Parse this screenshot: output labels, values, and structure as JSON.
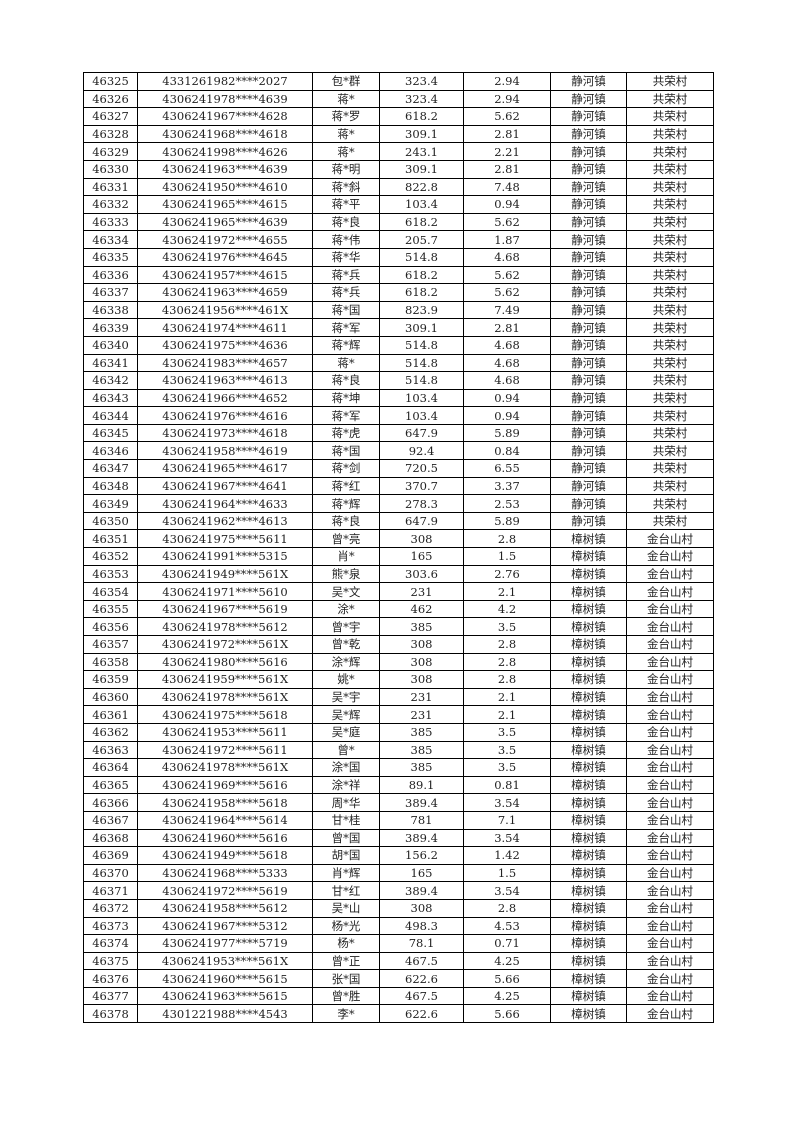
{
  "rows": [
    [
      "46325",
      "4331261982****2027",
      "包*群",
      "323.4",
      "2.94",
      "静河镇",
      "共荣村"
    ],
    [
      "46326",
      "4306241978****4639",
      "蒋*",
      "323.4",
      "2.94",
      "静河镇",
      "共荣村"
    ],
    [
      "46327",
      "4306241967****4628",
      "蒋*罗",
      "618.2",
      "5.62",
      "静河镇",
      "共荣村"
    ],
    [
      "46328",
      "4306241968****4618",
      "蒋*",
      "309.1",
      "2.81",
      "静河镇",
      "共荣村"
    ],
    [
      "46329",
      "4306241998****4626",
      "蒋*",
      "243.1",
      "2.21",
      "静河镇",
      "共荣村"
    ],
    [
      "46330",
      "4306241963****4639",
      "蒋*明",
      "309.1",
      "2.81",
      "静河镇",
      "共荣村"
    ],
    [
      "46331",
      "4306241950****4610",
      "蒋*斜",
      "822.8",
      "7.48",
      "静河镇",
      "共荣村"
    ],
    [
      "46332",
      "4306241965****4615",
      "蒋*平",
      "103.4",
      "0.94",
      "静河镇",
      "共荣村"
    ],
    [
      "46333",
      "4306241965****4639",
      "蒋*良",
      "618.2",
      "5.62",
      "静河镇",
      "共荣村"
    ],
    [
      "46334",
      "4306241972****4655",
      "蒋*伟",
      "205.7",
      "1.87",
      "静河镇",
      "共荣村"
    ],
    [
      "46335",
      "4306241976****4645",
      "蒋*华",
      "514.8",
      "4.68",
      "静河镇",
      "共荣村"
    ],
    [
      "46336",
      "4306241957****4615",
      "蒋*兵",
      "618.2",
      "5.62",
      "静河镇",
      "共荣村"
    ],
    [
      "46337",
      "4306241963****4659",
      "蒋*兵",
      "618.2",
      "5.62",
      "静河镇",
      "共荣村"
    ],
    [
      "46338",
      "4306241956****461X",
      "蒋*国",
      "823.9",
      "7.49",
      "静河镇",
      "共荣村"
    ],
    [
      "46339",
      "4306241974****4611",
      "蒋*军",
      "309.1",
      "2.81",
      "静河镇",
      "共荣村"
    ],
    [
      "46340",
      "4306241975****4636",
      "蒋*辉",
      "514.8",
      "4.68",
      "静河镇",
      "共荣村"
    ],
    [
      "46341",
      "4306241983****4657",
      "蒋*",
      "514.8",
      "4.68",
      "静河镇",
      "共荣村"
    ],
    [
      "46342",
      "4306241963****4613",
      "蒋*良",
      "514.8",
      "4.68",
      "静河镇",
      "共荣村"
    ],
    [
      "46343",
      "4306241966****4652",
      "蒋*坤",
      "103.4",
      "0.94",
      "静河镇",
      "共荣村"
    ],
    [
      "46344",
      "4306241976****4616",
      "蒋*军",
      "103.4",
      "0.94",
      "静河镇",
      "共荣村"
    ],
    [
      "46345",
      "4306241973****4618",
      "蒋*虎",
      "647.9",
      "5.89",
      "静河镇",
      "共荣村"
    ],
    [
      "46346",
      "4306241958****4619",
      "蒋*国",
      "92.4",
      "0.84",
      "静河镇",
      "共荣村"
    ],
    [
      "46347",
      "4306241965****4617",
      "蒋*剑",
      "720.5",
      "6.55",
      "静河镇",
      "共荣村"
    ],
    [
      "46348",
      "4306241967****4641",
      "蒋*红",
      "370.7",
      "3.37",
      "静河镇",
      "共荣村"
    ],
    [
      "46349",
      "4306241964****4633",
      "蒋*辉",
      "278.3",
      "2.53",
      "静河镇",
      "共荣村"
    ],
    [
      "46350",
      "4306241962****4613",
      "蒋*良",
      "647.9",
      "5.89",
      "静河镇",
      "共荣村"
    ],
    [
      "46351",
      "4306241975****5611",
      "曾*亮",
      "308",
      "2.8",
      "樟树镇",
      "金台山村"
    ],
    [
      "46352",
      "4306241991****5315",
      "肖*",
      "165",
      "1.5",
      "樟树镇",
      "金台山村"
    ],
    [
      "46353",
      "4306241949****561X",
      "熊*泉",
      "303.6",
      "2.76",
      "樟树镇",
      "金台山村"
    ],
    [
      "46354",
      "4306241971****5610",
      "吴*文",
      "231",
      "2.1",
      "樟树镇",
      "金台山村"
    ],
    [
      "46355",
      "4306241967****5619",
      "涂*",
      "462",
      "4.2",
      "樟树镇",
      "金台山村"
    ],
    [
      "46356",
      "4306241978****5612",
      "曾*宇",
      "385",
      "3.5",
      "樟树镇",
      "金台山村"
    ],
    [
      "46357",
      "4306241972****561X",
      "曾*乾",
      "308",
      "2.8",
      "樟树镇",
      "金台山村"
    ],
    [
      "46358",
      "4306241980****5616",
      "涂*辉",
      "308",
      "2.8",
      "樟树镇",
      "金台山村"
    ],
    [
      "46359",
      "4306241959****561X",
      "姚*",
      "308",
      "2.8",
      "樟树镇",
      "金台山村"
    ],
    [
      "46360",
      "4306241978****561X",
      "吴*宇",
      "231",
      "2.1",
      "樟树镇",
      "金台山村"
    ],
    [
      "46361",
      "4306241975****5618",
      "吴*辉",
      "231",
      "2.1",
      "樟树镇",
      "金台山村"
    ],
    [
      "46362",
      "4306241953****5611",
      "吴*庭",
      "385",
      "3.5",
      "樟树镇",
      "金台山村"
    ],
    [
      "46363",
      "4306241972****5611",
      "曾*",
      "385",
      "3.5",
      "樟树镇",
      "金台山村"
    ],
    [
      "46364",
      "4306241978****561X",
      "涂*国",
      "385",
      "3.5",
      "樟树镇",
      "金台山村"
    ],
    [
      "46365",
      "4306241969****5616",
      "涂*祥",
      "89.1",
      "0.81",
      "樟树镇",
      "金台山村"
    ],
    [
      "46366",
      "4306241958****5618",
      "周*华",
      "389.4",
      "3.54",
      "樟树镇",
      "金台山村"
    ],
    [
      "46367",
      "4306241964****5614",
      "甘*桂",
      "781",
      "7.1",
      "樟树镇",
      "金台山村"
    ],
    [
      "46368",
      "4306241960****5616",
      "曾*国",
      "389.4",
      "3.54",
      "樟树镇",
      "金台山村"
    ],
    [
      "46369",
      "4306241949****5618",
      "胡*国",
      "156.2",
      "1.42",
      "樟树镇",
      "金台山村"
    ],
    [
      "46370",
      "4306241968****5333",
      "肖*辉",
      "165",
      "1.5",
      "樟树镇",
      "金台山村"
    ],
    [
      "46371",
      "4306241972****5619",
      "甘*红",
      "389.4",
      "3.54",
      "樟树镇",
      "金台山村"
    ],
    [
      "46372",
      "4306241958****5612",
      "吴*山",
      "308",
      "2.8",
      "樟树镇",
      "金台山村"
    ],
    [
      "46373",
      "4306241967****5312",
      "杨*光",
      "498.3",
      "4.53",
      "樟树镇",
      "金台山村"
    ],
    [
      "46374",
      "4306241977****5719",
      "杨*",
      "78.1",
      "0.71",
      "樟树镇",
      "金台山村"
    ],
    [
      "46375",
      "4306241953****561X",
      "曾*正",
      "467.5",
      "4.25",
      "樟树镇",
      "金台山村"
    ],
    [
      "46376",
      "4306241960****5615",
      "张*国",
      "622.6",
      "5.66",
      "樟树镇",
      "金台山村"
    ],
    [
      "46377",
      "4306241963****5615",
      "曾*胜",
      "467.5",
      "4.25",
      "樟树镇",
      "金台山村"
    ],
    [
      "46378",
      "4301221988****4543",
      "李*",
      "622.6",
      "5.66",
      "樟树镇",
      "金台山村"
    ]
  ]
}
